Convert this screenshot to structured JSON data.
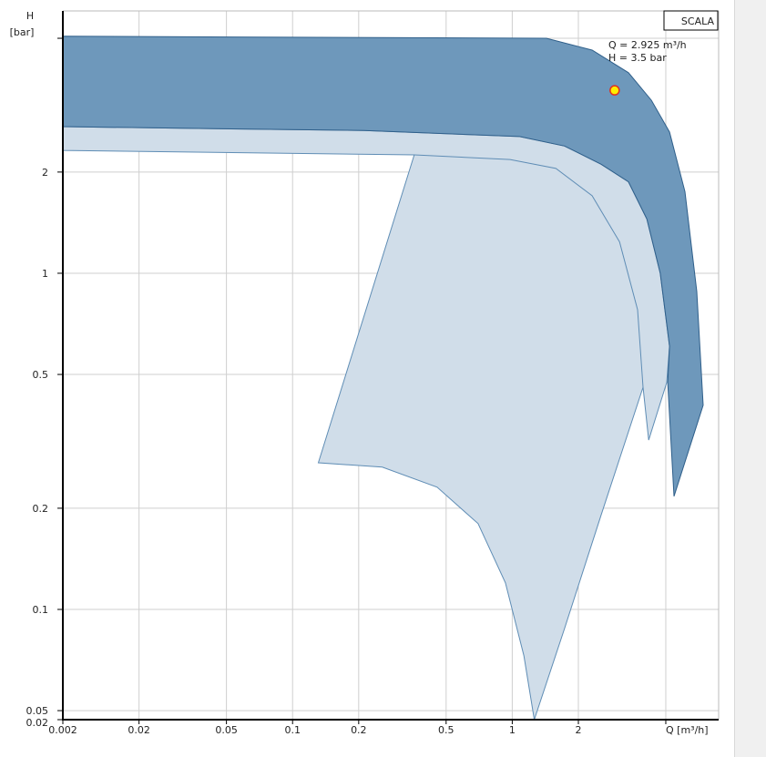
{
  "chart_data": {
    "type": "area",
    "log_x": true,
    "log_y": true,
    "grid": true,
    "xlim": [
      0.009,
      8.7
    ],
    "ylim": [
      0.047,
      6.03
    ],
    "xticks": [
      0.002,
      0.02,
      0.05,
      0.1,
      0.2,
      0.5,
      1,
      2
    ],
    "yticks": [
      0.02,
      0.05,
      0.1,
      0.2,
      0.5,
      1,
      2
    ],
    "extra_gridlines": {
      "x": [
        5
      ],
      "y": [
        5
      ]
    },
    "x_label": "Q [m³/h]",
    "y_label": [
      "H",
      "[bar]"
    ],
    "legend_box": "SCALA",
    "annotations": [
      "Q = 2.925 m³/h",
      "H = 3.5 bar"
    ],
    "point": {
      "x": 2.925,
      "y": 3.5,
      "color": "#ffee00",
      "edge": "#e03020"
    },
    "series": [
      {
        "kind": "polygon",
        "color": "#d0dde9",
        "edge": "#5f8db5",
        "x": [
          0.009,
          0.0313,
          0.212,
          1.08,
          1.73,
          2.54,
          3.38,
          4.1,
          4.72,
          5.2,
          5.05,
          4.18,
          3.94,
          2.54,
          1.73,
          1.26,
          1.13,
          0.931,
          0.699,
          0.455,
          0.256,
          0.131,
          0.358,
          0.009
        ],
        "values": [
          2.73,
          2.7,
          2.66,
          2.55,
          2.39,
          2.11,
          1.87,
          1.45,
          1.0,
          0.607,
          0.473,
          0.319,
          0.458,
          0.191,
          0.0877,
          0.047,
          0.0728,
          0.12,
          0.18,
          0.231,
          0.265,
          0.273,
          2.25,
          2.32
        ]
      },
      {
        "kind": "polygon",
        "color": "#6e98bb",
        "edge": "#2f5f8a",
        "x": [
          0.009,
          1.43,
          2.31,
          3.38,
          4.3,
          5.2,
          6.11,
          6.92,
          7.4,
          5.45,
          5.1,
          5.2,
          4.72,
          4.1,
          3.38,
          2.54,
          1.73,
          1.08,
          0.212,
          0.0313,
          0.009
        ],
        "values": [
          5.07,
          5.0,
          4.61,
          3.95,
          3.27,
          2.63,
          1.75,
          0.883,
          0.405,
          0.217,
          0.473,
          0.607,
          1.0,
          1.45,
          1.87,
          2.11,
          2.39,
          2.55,
          2.66,
          2.7,
          2.73
        ]
      },
      {
        "kind": "line",
        "color": "#5f8db5",
        "x": [
          0.358,
          0.977,
          1.58,
          2.31,
          3.08,
          3.72,
          3.94
        ],
        "values": [
          2.25,
          2.18,
          2.05,
          1.7,
          1.24,
          0.779,
          0.458
        ]
      }
    ]
  }
}
